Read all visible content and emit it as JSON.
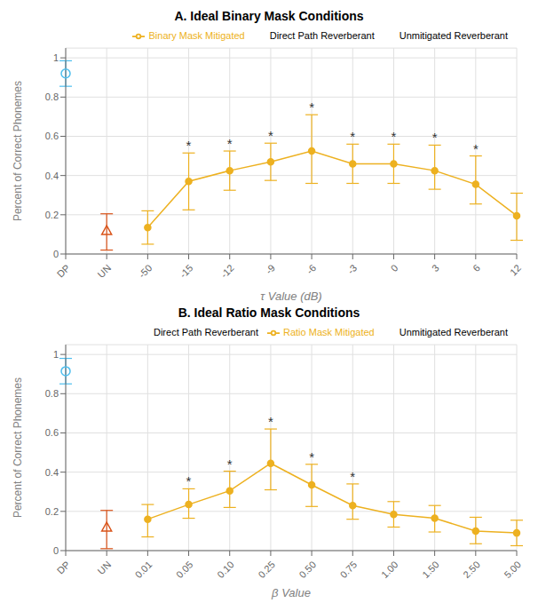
{
  "chart_data": [
    {
      "type": "line",
      "title": "A. Ideal Binary Mask Conditions",
      "x_label": "τ Value (dB)",
      "y_label": "Percent of Correct Phonemes",
      "categories": [
        "DP",
        "UN",
        "-50",
        "-15",
        "-12",
        "-9",
        "-6",
        "-3",
        "0",
        "3",
        "6",
        "12"
      ],
      "series": [
        {
          "name": "Direct Path Reverberant",
          "type": "scatter",
          "marker": "circle",
          "color": "#4DBEEE",
          "values": [
            0.92,
            null,
            null,
            null,
            null,
            null,
            null,
            null,
            null,
            null,
            null,
            null
          ],
          "error_low": [
            0.065,
            null,
            null,
            null,
            null,
            null,
            null,
            null,
            null,
            null,
            null,
            null
          ],
          "error_high": [
            0.065,
            null,
            null,
            null,
            null,
            null,
            null,
            null,
            null,
            null,
            null,
            null
          ]
        },
        {
          "name": "Unmitigated Reverberant",
          "type": "scatter",
          "marker": "triangle",
          "color": "#D95319",
          "values": [
            null,
            0.12,
            null,
            null,
            null,
            null,
            null,
            null,
            null,
            null,
            null,
            null
          ],
          "error_low": [
            null,
            0.1,
            null,
            null,
            null,
            null,
            null,
            null,
            null,
            null,
            null,
            null
          ],
          "error_high": [
            null,
            0.085,
            null,
            null,
            null,
            null,
            null,
            null,
            null,
            null,
            null,
            null
          ]
        },
        {
          "name": "Binary Mask Mitigated",
          "type": "line",
          "marker": "circle",
          "line_style": "solid",
          "color": "#EDB120",
          "values": [
            null,
            null,
            0.135,
            0.37,
            0.425,
            0.47,
            0.525,
            0.46,
            0.46,
            0.425,
            0.355,
            0.195
          ],
          "error_low": [
            null,
            null,
            0.085,
            0.145,
            0.1,
            0.095,
            0.165,
            0.1,
            0.1,
            0.095,
            0.1,
            0.125
          ],
          "error_high": [
            null,
            null,
            0.085,
            0.145,
            0.1,
            0.095,
            0.185,
            0.1,
            0.1,
            0.13,
            0.145,
            0.115
          ]
        }
      ],
      "annotations": [
        {
          "text": "*",
          "x": "-15"
        },
        {
          "text": "*",
          "x": "-12"
        },
        {
          "text": "*",
          "x": "-9"
        },
        {
          "text": "*",
          "x": "-6"
        },
        {
          "text": "*",
          "x": "-3"
        },
        {
          "text": "*",
          "x": "0"
        },
        {
          "text": "*",
          "x": "3"
        },
        {
          "text": "*",
          "x": "6"
        }
      ],
      "ylim": [
        0,
        1.05
      ],
      "yticks": [
        0,
        0.2,
        0.4,
        0.6,
        0.8,
        1
      ],
      "grid": true,
      "legend": "upper right"
    },
    {
      "type": "line",
      "title": "B. Ideal Ratio Mask Conditions",
      "x_label": "β Value",
      "y_label": "Percent of Correct Phonemes",
      "categories": [
        "DP",
        "UN",
        "0.01",
        "0.05",
        "0.10",
        "0.25",
        "0.50",
        "0.75",
        "1.00",
        "1.50",
        "2.50",
        "5.00"
      ],
      "series": [
        {
          "name": "Direct Path Reverberant",
          "type": "scatter",
          "marker": "circle",
          "color": "#4DBEEE",
          "values": [
            0.915,
            null,
            null,
            null,
            null,
            null,
            null,
            null,
            null,
            null,
            null,
            null
          ],
          "error_low": [
            0.065,
            null,
            null,
            null,
            null,
            null,
            null,
            null,
            null,
            null,
            null,
            null
          ],
          "error_high": [
            0.065,
            null,
            null,
            null,
            null,
            null,
            null,
            null,
            null,
            null,
            null,
            null
          ]
        },
        {
          "name": "Unmitigated Reverberant",
          "type": "scatter",
          "marker": "triangle",
          "color": "#D95319",
          "values": [
            null,
            0.12,
            null,
            null,
            null,
            null,
            null,
            null,
            null,
            null,
            null,
            null
          ],
          "error_low": [
            null,
            0.11,
            null,
            null,
            null,
            null,
            null,
            null,
            null,
            null,
            null,
            null
          ],
          "error_high": [
            null,
            0.085,
            null,
            null,
            null,
            null,
            null,
            null,
            null,
            null,
            null,
            null
          ]
        },
        {
          "name": "Ratio Mask Mitigated",
          "type": "line",
          "marker": "circle",
          "line_style": "solid",
          "color": "#EDB120",
          "values": [
            null,
            null,
            0.16,
            0.235,
            0.305,
            0.445,
            0.335,
            0.23,
            0.185,
            0.165,
            0.1,
            0.09
          ],
          "error_low": [
            null,
            null,
            0.09,
            0.07,
            0.085,
            0.135,
            0.11,
            0.07,
            0.065,
            0.07,
            0.065,
            0.065
          ],
          "error_high": [
            null,
            null,
            0.075,
            0.08,
            0.1,
            0.175,
            0.105,
            0.11,
            0.065,
            0.065,
            0.07,
            0.065
          ]
        }
      ],
      "annotations": [
        {
          "text": "*",
          "x": "0.05"
        },
        {
          "text": "*",
          "x": "0.10"
        },
        {
          "text": "*",
          "x": "0.25"
        },
        {
          "text": "*",
          "x": "0.50"
        },
        {
          "text": "*",
          "x": "0.75"
        }
      ],
      "ylim": [
        0,
        1.05
      ],
      "yticks": [
        0,
        0.2,
        0.4,
        0.6,
        0.8,
        1
      ],
      "grid": true,
      "legend": "upper right"
    }
  ]
}
